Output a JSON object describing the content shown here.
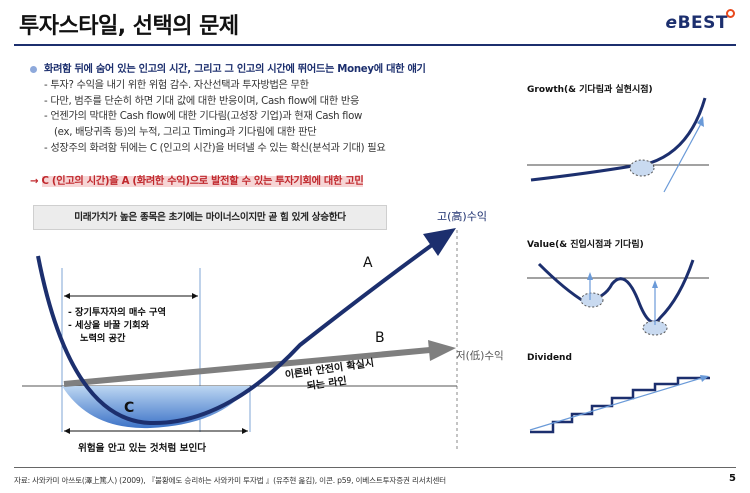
{
  "title": "투자스타일, 선택의 문제",
  "logo": {
    "prefix": "e",
    "name": "BEST"
  },
  "bullets": {
    "main": "화려함 뒤에 숨어 있는 인고의 시간, 그리고 그 인고의 시간에 뛰어드는 Money에 대한 얘기",
    "subs": [
      "- 투자? 수익을 내기 위한 위험 감수. 자산선택과 투자방법은 무한",
      "- 다만, 범주를 단순히 하면 기대 값에 대한 반응이며, Cash flow에 대한 반응",
      "- 언젠가의 막대한 Cash flow에 대한 기다림(고성장 기업)과 현재 Cash flow",
      "(ex, 배당귀족 등)의 누적, 그리고 Timing과 기다림에 대한 판단",
      "-  성장주의 화려함 뒤에는 C (인고의 시간)을 버텨낼 수 있는 확신(분석과 기대) 필요"
    ]
  },
  "conclusion": {
    "arrow": "→",
    "text": "C (인고의 시간)을 A (화려한 수익)으로 발전할 수 있는 투자기회에 대한 고민"
  },
  "callout": "미래가치가 높은 종목은 초기에는 마이너스이지만 곧 힘 있게 상승한다",
  "diagram": {
    "high_return": "고(高)수익",
    "low_return": "저(低)수익",
    "label_a": "A",
    "label_b": "B",
    "label_c": "C",
    "safe_line_1": "이른바 안전이 확실시",
    "safe_line_2": "되는 라인",
    "zone_1": "- 장기투자자의 매수 구역",
    "zone_2": "-  세상을 바꿀 기회와",
    "zone_3": "노력의 공간",
    "risk_text": "위험을 안고 있는 것처럼 보인다"
  },
  "mini_charts": {
    "growth_title": "Growth(& 기다림과 실현시점)",
    "value_title": "Value(& 진입시점과 기다림)",
    "dividend_title": "Dividend"
  },
  "colors": {
    "navy": "#1c2f6e",
    "accent_red": "#c0282d",
    "light_blue": "#8ea9db",
    "grey_arrow": "#808080"
  },
  "source": "자료: 사와카미 아쓰토(澤上篤人) (2009), 『불황에도 승리하는 사와카미 투자법 』(유주현 옮김), 이콘. p59, 이베스트투자증권 리서치센터",
  "page_number": "5"
}
